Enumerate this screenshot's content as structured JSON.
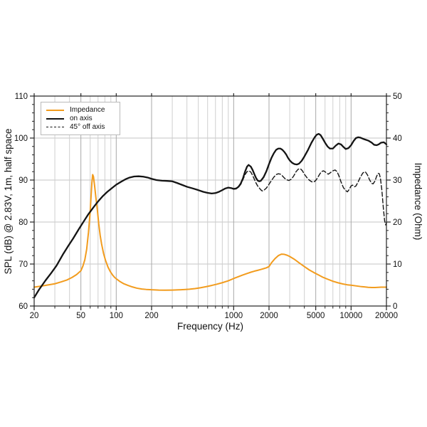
{
  "colors": {
    "background": "#ffffff",
    "impedance_orange": "#F29C1E",
    "curve_black": "#141414",
    "grid_minor": "#cfcfcf",
    "grid_major": "#a8a8a8",
    "grid_horizontal": "#c4c4c4",
    "spine": "#222222",
    "text": "#111111",
    "legend_border": "#b9b9b9"
  },
  "legend": {
    "items": [
      {
        "label": "Impedance",
        "color": "#F29C1E",
        "line_style": "solid"
      },
      {
        "label": "on axis",
        "color": "#141414",
        "line_style": "solid"
      },
      {
        "label": "45° off axis",
        "color": "#141414",
        "line_style": "dashed"
      }
    ]
  },
  "chart_data": {
    "type": "line",
    "title": "",
    "xlabel": "Frequency (Hz)",
    "x_scale": "log",
    "xlim": [
      20,
      20000
    ],
    "x_major_ticks": [
      20,
      50,
      100,
      200,
      1000,
      2000,
      5000,
      10000,
      20000
    ],
    "x_minor_ticks": [
      30,
      40,
      60,
      70,
      80,
      90,
      300,
      400,
      500,
      600,
      700,
      800,
      900,
      3000,
      4000,
      6000,
      7000,
      8000,
      9000
    ],
    "ylabel_left": "SPL (dB) @ 2.83V, 1m, half space",
    "ylim_left": [
      60,
      110
    ],
    "y_left_ticks": [
      60,
      70,
      80,
      90,
      100,
      110
    ],
    "ylabel_right": "Impedance (Ohm)",
    "ylim_right": [
      0,
      50
    ],
    "y_right_ticks": [
      0,
      10,
      20,
      30,
      40,
      50
    ],
    "y_minor_step": 2,
    "h_gridlines_db": [
      70,
      80,
      90,
      100
    ],
    "grid": true,
    "legend_position": "top-left",
    "series": [
      {
        "name": "Impedance",
        "axis": "right",
        "unit": "Ohm",
        "color": "#F29C1E",
        "style": "solid",
        "stroke_width": 2,
        "points": [
          [
            20,
            4.5
          ],
          [
            23,
            4.75
          ],
          [
            26,
            5.0
          ],
          [
            30,
            5.3
          ],
          [
            34,
            5.75
          ],
          [
            38,
            6.2
          ],
          [
            42,
            6.8
          ],
          [
            46,
            7.5
          ],
          [
            50,
            8.4
          ],
          [
            52,
            9.5
          ],
          [
            54,
            11.0
          ],
          [
            56,
            13.5
          ],
          [
            58,
            17.5
          ],
          [
            60,
            22.5
          ],
          [
            61,
            26.0
          ],
          [
            62,
            29.3
          ],
          [
            63,
            31.3
          ],
          [
            64,
            30.8
          ],
          [
            65.5,
            28.5
          ],
          [
            67,
            26.0
          ],
          [
            69,
            23.0
          ],
          [
            71,
            19.5
          ],
          [
            73,
            16.8
          ],
          [
            75,
            14.8
          ],
          [
            78,
            12.5
          ],
          [
            81,
            10.9
          ],
          [
            85,
            9.3
          ],
          [
            89,
            8.2
          ],
          [
            93,
            7.4
          ],
          [
            97,
            6.8
          ],
          [
            101,
            6.4
          ],
          [
            108,
            5.8
          ],
          [
            116,
            5.3
          ],
          [
            126,
            4.9
          ],
          [
            137,
            4.55
          ],
          [
            150,
            4.25
          ],
          [
            165,
            4.05
          ],
          [
            180,
            3.95
          ],
          [
            200,
            3.87
          ],
          [
            230,
            3.8
          ],
          [
            260,
            3.78
          ],
          [
            300,
            3.8
          ],
          [
            340,
            3.85
          ],
          [
            380,
            3.92
          ],
          [
            420,
            4.0
          ],
          [
            470,
            4.15
          ],
          [
            520,
            4.35
          ],
          [
            580,
            4.6
          ],
          [
            650,
            4.9
          ],
          [
            720,
            5.2
          ],
          [
            800,
            5.55
          ],
          [
            900,
            6.0
          ],
          [
            1000,
            6.55
          ],
          [
            1100,
            7.0
          ],
          [
            1200,
            7.4
          ],
          [
            1300,
            7.75
          ],
          [
            1400,
            8.05
          ],
          [
            1500,
            8.3
          ],
          [
            1600,
            8.5
          ],
          [
            1700,
            8.7
          ],
          [
            1800,
            8.9
          ],
          [
            1900,
            9.1
          ],
          [
            2000,
            9.4
          ],
          [
            2100,
            10.3
          ],
          [
            2250,
            11.3
          ],
          [
            2400,
            12.0
          ],
          [
            2550,
            12.35
          ],
          [
            2700,
            12.3
          ],
          [
            2850,
            12.1
          ],
          [
            3000,
            11.8
          ],
          [
            3300,
            11.1
          ],
          [
            3600,
            10.3
          ],
          [
            4000,
            9.4
          ],
          [
            4400,
            8.6
          ],
          [
            4800,
            8.0
          ],
          [
            5200,
            7.5
          ],
          [
            5700,
            6.9
          ],
          [
            6300,
            6.4
          ],
          [
            7000,
            5.9
          ],
          [
            7700,
            5.55
          ],
          [
            8500,
            5.25
          ],
          [
            9300,
            5.05
          ],
          [
            10000,
            4.95
          ],
          [
            11000,
            4.8
          ],
          [
            12000,
            4.65
          ],
          [
            13000,
            4.55
          ],
          [
            14000,
            4.45
          ],
          [
            15000,
            4.4
          ],
          [
            16000,
            4.4
          ],
          [
            17000,
            4.45
          ],
          [
            18000,
            4.5
          ],
          [
            19000,
            4.5
          ],
          [
            20000,
            4.5
          ]
        ]
      },
      {
        "name": "on axis",
        "axis": "left",
        "unit": "dB",
        "color": "#141414",
        "style": "solid",
        "stroke_width": 2.3,
        "points": [
          [
            20,
            62.0
          ],
          [
            22,
            63.9
          ],
          [
            25,
            66.1
          ],
          [
            28,
            67.9
          ],
          [
            31,
            69.6
          ],
          [
            35,
            72.2
          ],
          [
            39,
            74.3
          ],
          [
            43,
            76.1
          ],
          [
            48,
            78.3
          ],
          [
            53,
            80.2
          ],
          [
            58,
            81.9
          ],
          [
            64,
            83.5
          ],
          [
            70,
            84.9
          ],
          [
            77,
            86.2
          ],
          [
            84,
            87.2
          ],
          [
            92,
            88.1
          ],
          [
            100,
            88.9
          ],
          [
            110,
            89.6
          ],
          [
            120,
            90.2
          ],
          [
            130,
            90.6
          ],
          [
            142,
            90.85
          ],
          [
            155,
            90.9
          ],
          [
            170,
            90.8
          ],
          [
            185,
            90.6
          ],
          [
            200,
            90.3
          ],
          [
            220,
            90.0
          ],
          [
            245,
            89.85
          ],
          [
            270,
            89.8
          ],
          [
            300,
            89.7
          ],
          [
            330,
            89.3
          ],
          [
            360,
            88.9
          ],
          [
            400,
            88.4
          ],
          [
            450,
            88.0
          ],
          [
            500,
            87.6
          ],
          [
            550,
            87.2
          ],
          [
            600,
            86.95
          ],
          [
            650,
            86.8
          ],
          [
            700,
            86.9
          ],
          [
            750,
            87.2
          ],
          [
            800,
            87.6
          ],
          [
            850,
            88.0
          ],
          [
            900,
            88.2
          ],
          [
            950,
            88.1
          ],
          [
            1000,
            87.9
          ],
          [
            1050,
            88.0
          ],
          [
            1100,
            88.4
          ],
          [
            1150,
            89.2
          ],
          [
            1200,
            90.4
          ],
          [
            1250,
            92.0
          ],
          [
            1300,
            93.2
          ],
          [
            1340,
            93.6
          ],
          [
            1400,
            93.2
          ],
          [
            1450,
            92.4
          ],
          [
            1500,
            91.4
          ],
          [
            1550,
            90.5
          ],
          [
            1600,
            89.9
          ],
          [
            1650,
            89.7
          ],
          [
            1700,
            89.8
          ],
          [
            1800,
            90.7
          ],
          [
            1900,
            92.1
          ],
          [
            2000,
            93.8
          ],
          [
            2100,
            95.3
          ],
          [
            2200,
            96.4
          ],
          [
            2300,
            97.2
          ],
          [
            2400,
            97.5
          ],
          [
            2500,
            97.5
          ],
          [
            2600,
            97.2
          ],
          [
            2700,
            96.7
          ],
          [
            2800,
            96.1
          ],
          [
            2900,
            95.3
          ],
          [
            3000,
            94.7
          ],
          [
            3150,
            94.1
          ],
          [
            3300,
            93.8
          ],
          [
            3450,
            93.7
          ],
          [
            3600,
            93.9
          ],
          [
            3800,
            94.6
          ],
          [
            4000,
            95.6
          ],
          [
            4300,
            97.2
          ],
          [
            4600,
            98.9
          ],
          [
            4900,
            100.2
          ],
          [
            5100,
            100.8
          ],
          [
            5300,
            101.0
          ],
          [
            5500,
            100.7
          ],
          [
            5700,
            100.0
          ],
          [
            6000,
            98.9
          ],
          [
            6300,
            98.0
          ],
          [
            6600,
            97.5
          ],
          [
            7000,
            97.5
          ],
          [
            7400,
            98.2
          ],
          [
            7800,
            98.7
          ],
          [
            8200,
            98.5
          ],
          [
            8600,
            97.9
          ],
          [
            9000,
            97.4
          ],
          [
            9500,
            97.6
          ],
          [
            10000,
            98.3
          ],
          [
            10500,
            99.3
          ],
          [
            11000,
            100.0
          ],
          [
            11500,
            100.2
          ],
          [
            12000,
            100.1
          ],
          [
            13000,
            99.7
          ],
          [
            14000,
            99.4
          ],
          [
            15000,
            98.9
          ],
          [
            15700,
            98.4
          ],
          [
            16500,
            98.3
          ],
          [
            17200,
            98.5
          ],
          [
            18000,
            98.9
          ],
          [
            19000,
            99.0
          ],
          [
            20000,
            98.5
          ]
        ]
      },
      {
        "name": "45° off axis",
        "axis": "left",
        "unit": "dB",
        "color": "#141414",
        "style": "dashed",
        "stroke_width": 1.4,
        "points": [
          [
            1000,
            87.8
          ],
          [
            1050,
            87.9
          ],
          [
            1100,
            88.3
          ],
          [
            1150,
            89.0
          ],
          [
            1200,
            90.1
          ],
          [
            1250,
            91.3
          ],
          [
            1300,
            92.0
          ],
          [
            1350,
            92.2
          ],
          [
            1400,
            91.9
          ],
          [
            1450,
            91.1
          ],
          [
            1500,
            90.2
          ],
          [
            1550,
            89.3
          ],
          [
            1600,
            88.6
          ],
          [
            1700,
            87.7
          ],
          [
            1750,
            87.4
          ],
          [
            1800,
            87.5
          ],
          [
            1900,
            88.1
          ],
          [
            2000,
            89.0
          ],
          [
            2100,
            89.9
          ],
          [
            2200,
            90.7
          ],
          [
            2300,
            91.3
          ],
          [
            2400,
            91.5
          ],
          [
            2500,
            91.4
          ],
          [
            2600,
            91.0
          ],
          [
            2700,
            90.5
          ],
          [
            2800,
            90.1
          ],
          [
            2950,
            89.9
          ],
          [
            3100,
            90.2
          ],
          [
            3250,
            91.0
          ],
          [
            3400,
            92.0
          ],
          [
            3550,
            92.6
          ],
          [
            3700,
            92.7
          ],
          [
            3850,
            92.2
          ],
          [
            4000,
            91.4
          ],
          [
            4200,
            90.6
          ],
          [
            4400,
            90.0
          ],
          [
            4600,
            89.6
          ],
          [
            4800,
            89.5
          ],
          [
            5000,
            89.9
          ],
          [
            5200,
            90.6
          ],
          [
            5400,
            91.4
          ],
          [
            5600,
            92.0
          ],
          [
            5800,
            92.2
          ],
          [
            6000,
            92.0
          ],
          [
            6200,
            91.6
          ],
          [
            6400,
            91.4
          ],
          [
            6700,
            91.8
          ],
          [
            7000,
            92.2
          ],
          [
            7300,
            92.4
          ],
          [
            7600,
            92.0
          ],
          [
            7900,
            90.9
          ],
          [
            8200,
            89.6
          ],
          [
            8600,
            88.2
          ],
          [
            9000,
            87.5
          ],
          [
            9300,
            87.2
          ],
          [
            9600,
            87.7
          ],
          [
            10000,
            88.6
          ],
          [
            10300,
            88.8
          ],
          [
            10700,
            88.4
          ],
          [
            11000,
            88.6
          ],
          [
            11500,
            89.6
          ],
          [
            12000,
            90.7
          ],
          [
            12600,
            91.7
          ],
          [
            13200,
            92.0
          ],
          [
            13800,
            91.2
          ],
          [
            14400,
            90.0
          ],
          [
            15000,
            89.2
          ],
          [
            15400,
            89.1
          ],
          [
            16000,
            89.8
          ],
          [
            16500,
            90.9
          ],
          [
            17000,
            91.6
          ],
          [
            17400,
            91.5
          ],
          [
            17800,
            90.3
          ],
          [
            18300,
            87.5
          ],
          [
            18800,
            83.5
          ],
          [
            19300,
            80.3
          ],
          [
            19700,
            79.3
          ],
          [
            20000,
            79.9
          ]
        ]
      }
    ]
  }
}
